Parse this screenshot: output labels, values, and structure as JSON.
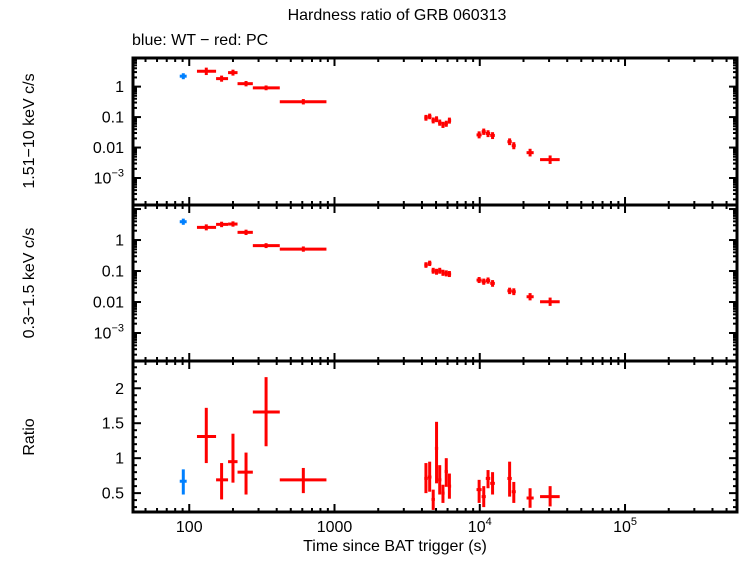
{
  "title": "Hardness ratio of GRB 060313",
  "subtitle": "blue: WT − red: PC",
  "colors": {
    "wt_blue": "#0080ff",
    "pc_red": "#ff0000",
    "frame": "#000000",
    "background": "#ffffff"
  },
  "xaxis": {
    "label": "Time since BAT trigger (s)",
    "scale": "log",
    "lim": [
      41,
      590000
    ],
    "ticks": [
      {
        "label": "100",
        "value": 100
      },
      {
        "label": "1000",
        "value": 1000
      },
      {
        "label": "10^4",
        "value": 10000
      },
      {
        "label": "10^5",
        "value": 100000
      }
    ]
  },
  "chart_data": {
    "type": "scatter",
    "title": "Hardness ratio of GRB 060313",
    "legend_note": "blue: WT − red: PC",
    "xlabel": "Time since BAT trigger (s)",
    "point_format": [
      "t",
      "t_lo",
      "t_hi",
      "value",
      "value_lo",
      "value_hi"
    ],
    "panels": [
      {
        "id": "hard",
        "ylabel": "1.51−10 keV c/s",
        "yscale": "log",
        "ylim": [
          0.00013,
          8.7
        ],
        "yticks": [
          {
            "label": "1",
            "value": 1
          },
          {
            "label": "0.1",
            "value": 0.1
          },
          {
            "label": "0.01",
            "value": 0.01
          },
          {
            "label": "10^-3",
            "value": 0.001
          }
        ],
        "series": [
          {
            "name": "WT",
            "color": "#0080ff",
            "points": [
              [
                91,
                86,
                96,
                2.2,
                1.75,
                2.75
              ]
            ]
          },
          {
            "name": "PC",
            "color": "#ff0000",
            "points": [
              [
                131,
                113,
                153,
                3.2,
                2.4,
                4.2
              ],
              [
                167,
                153,
                185,
                1.83,
                1.45,
                2.3
              ],
              [
                200,
                185,
                215,
                2.88,
                2.3,
                3.6
              ],
              [
                246,
                215,
                274,
                1.25,
                1.02,
                1.53
              ],
              [
                338,
                274,
                420,
                0.91,
                0.76,
                1.09
              ],
              [
                610,
                420,
                880,
                0.32,
                0.26,
                0.39
              ],
              [
                4260,
                4150,
                4390,
                0.095,
                0.076,
                0.118
              ],
              [
                4520,
                4390,
                4650,
                0.105,
                0.085,
                0.13
              ],
              [
                4780,
                4650,
                4910,
                0.078,
                0.062,
                0.097
              ],
              [
                5040,
                4910,
                5170,
                0.085,
                0.068,
                0.106
              ],
              [
                5300,
                5170,
                5440,
                0.066,
                0.052,
                0.083
              ],
              [
                5580,
                5440,
                5730,
                0.056,
                0.044,
                0.07
              ],
              [
                5880,
                5730,
                6030,
                0.061,
                0.048,
                0.076
              ],
              [
                6180,
                6030,
                6350,
                0.077,
                0.061,
                0.096
              ],
              [
                9900,
                9500,
                10300,
                0.026,
                0.02,
                0.034
              ],
              [
                10650,
                10300,
                11000,
                0.033,
                0.026,
                0.042
              ],
              [
                11400,
                11000,
                11800,
                0.029,
                0.022,
                0.037
              ],
              [
                12250,
                11800,
                12700,
                0.025,
                0.019,
                0.032
              ],
              [
                16050,
                15500,
                16600,
                0.0155,
                0.012,
                0.02
              ],
              [
                17150,
                16600,
                17700,
                0.0115,
                0.0088,
                0.015
              ],
              [
                22200,
                21000,
                23500,
                0.0068,
                0.0051,
                0.0091
              ],
              [
                30500,
                26000,
                35500,
                0.004,
                0.0029,
                0.0055
              ]
            ]
          }
        ]
      },
      {
        "id": "soft",
        "ylabel": "0.3−1.5 keV c/s",
        "yscale": "log",
        "ylim": [
          0.000125,
          13.5
        ],
        "yticks": [
          {
            "label": "1",
            "value": 1
          },
          {
            "label": "0.1",
            "value": 0.1
          },
          {
            "label": "0.01",
            "value": 0.01
          },
          {
            "label": "10^-3",
            "value": 0.001
          }
        ],
        "series": [
          {
            "name": "WT",
            "color": "#0080ff",
            "points": [
              [
                91,
                86,
                96,
                3.9,
                3.1,
                4.9
              ]
            ]
          },
          {
            "name": "PC",
            "color": "#ff0000",
            "points": [
              [
                131,
                113,
                153,
                2.57,
                2.05,
                3.2
              ],
              [
                167,
                153,
                185,
                3.2,
                2.6,
                3.9
              ],
              [
                200,
                185,
                215,
                3.28,
                2.7,
                4.0
              ],
              [
                246,
                215,
                274,
                1.77,
                1.45,
                2.16
              ],
              [
                338,
                274,
                420,
                0.66,
                0.55,
                0.79
              ],
              [
                610,
                420,
                880,
                0.51,
                0.42,
                0.62
              ],
              [
                4260,
                4150,
                4390,
                0.156,
                0.127,
                0.192
              ],
              [
                4520,
                4390,
                4650,
                0.177,
                0.145,
                0.216
              ],
              [
                4780,
                4650,
                4910,
                0.102,
                0.082,
                0.127
              ],
              [
                5040,
                4910,
                5170,
                0.095,
                0.076,
                0.118
              ],
              [
                5300,
                5170,
                5440,
                0.102,
                0.082,
                0.127
              ],
              [
                5580,
                5440,
                5730,
                0.088,
                0.07,
                0.11
              ],
              [
                5880,
                5730,
                6030,
                0.084,
                0.067,
                0.105
              ],
              [
                6180,
                6030,
                6350,
                0.08,
                0.064,
                0.1
              ],
              [
                9900,
                9500,
                10300,
                0.051,
                0.041,
                0.064
              ],
              [
                10650,
                10300,
                11000,
                0.045,
                0.036,
                0.057
              ],
              [
                11400,
                11000,
                11800,
                0.049,
                0.039,
                0.062
              ],
              [
                12250,
                11800,
                12700,
                0.04,
                0.031,
                0.051
              ],
              [
                16050,
                15500,
                16600,
                0.023,
                0.018,
                0.029
              ],
              [
                17150,
                16600,
                17700,
                0.0215,
                0.0167,
                0.0277
              ],
              [
                22200,
                21000,
                23500,
                0.0148,
                0.0113,
                0.0194
              ],
              [
                30500,
                26000,
                35500,
                0.0102,
                0.0075,
                0.0139
              ]
            ]
          }
        ]
      },
      {
        "id": "ratio",
        "ylabel": "Ratio",
        "yscale": "linear",
        "ylim": [
          0.23,
          2.39
        ],
        "yticks": [
          {
            "label": "2",
            "value": 2
          },
          {
            "label": "1.5",
            "value": 1.5
          },
          {
            "label": "1",
            "value": 1
          },
          {
            "label": "0.5",
            "value": 0.5
          }
        ],
        "series": [
          {
            "name": "WT",
            "color": "#0080ff",
            "points": [
              [
                91,
                86,
                96,
                0.67,
                0.48,
                0.84
              ]
            ]
          },
          {
            "name": "PC",
            "color": "#ff0000",
            "points": [
              [
                131,
                113,
                153,
                1.31,
                0.93,
                1.72
              ],
              [
                167,
                153,
                185,
                0.69,
                0.41,
                0.93
              ],
              [
                200,
                185,
                215,
                0.95,
                0.65,
                1.35
              ],
              [
                246,
                215,
                274,
                0.8,
                0.48,
                1.08
              ],
              [
                338,
                274,
                420,
                1.66,
                1.17,
                2.16
              ],
              [
                610,
                420,
                880,
                0.69,
                0.5,
                0.86
              ],
              [
                4260,
                4150,
                4390,
                0.71,
                0.5,
                0.93
              ],
              [
                4520,
                4390,
                4650,
                0.73,
                0.52,
                0.95
              ],
              [
                4780,
                4650,
                4910,
                0.41,
                0.26,
                0.55
              ],
              [
                5040,
                4910,
                5170,
                1.14,
                0.64,
                1.52
              ],
              [
                5300,
                5170,
                5440,
                0.69,
                0.48,
                0.9
              ],
              [
                5580,
                5440,
                5730,
                0.5,
                0.36,
                0.62
              ],
              [
                5880,
                5730,
                6030,
                0.81,
                0.59,
                1.0
              ],
              [
                6180,
                6030,
                6350,
                0.6,
                0.42,
                0.78
              ],
              [
                9900,
                9500,
                10300,
                0.55,
                0.36,
                0.69
              ],
              [
                10650,
                10300,
                11000,
                0.45,
                0.3,
                0.6
              ],
              [
                11400,
                11000,
                11800,
                0.71,
                0.57,
                0.83
              ],
              [
                12250,
                11800,
                12700,
                0.64,
                0.48,
                0.8
              ],
              [
                16050,
                15500,
                16600,
                0.71,
                0.45,
                0.95
              ],
              [
                17150,
                16600,
                17700,
                0.52,
                0.36,
                0.66
              ],
              [
                22200,
                21000,
                23500,
                0.43,
                0.29,
                0.57
              ],
              [
                30500,
                26000,
                35500,
                0.45,
                0.31,
                0.6
              ]
            ]
          }
        ]
      }
    ]
  }
}
